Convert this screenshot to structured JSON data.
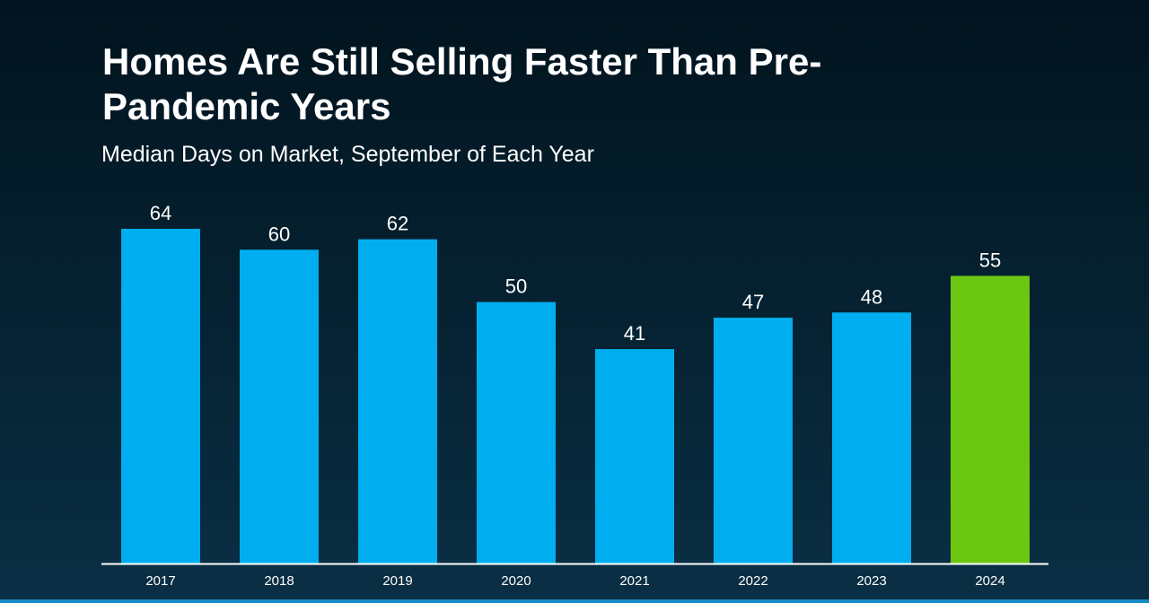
{
  "chart_data": {
    "type": "bar",
    "title": "Homes Are Still Selling Faster Than Pre-Pandemic Years",
    "subtitle": "Median Days on Market, September of Each Year",
    "categories": [
      "2017",
      "2018",
      "2019",
      "2020",
      "2021",
      "2022",
      "2023",
      "2024"
    ],
    "values": [
      64,
      60,
      62,
      50,
      41,
      47,
      48,
      55
    ],
    "xlabel": "",
    "ylabel": "",
    "ylim": [
      0,
      64
    ],
    "grid": false,
    "legend": "none",
    "colors": {
      "bar": "#00aeef",
      "highlight": "#6cc712",
      "axis": "#ffffff",
      "text": "#ffffff"
    },
    "highlight_index": 7
  }
}
